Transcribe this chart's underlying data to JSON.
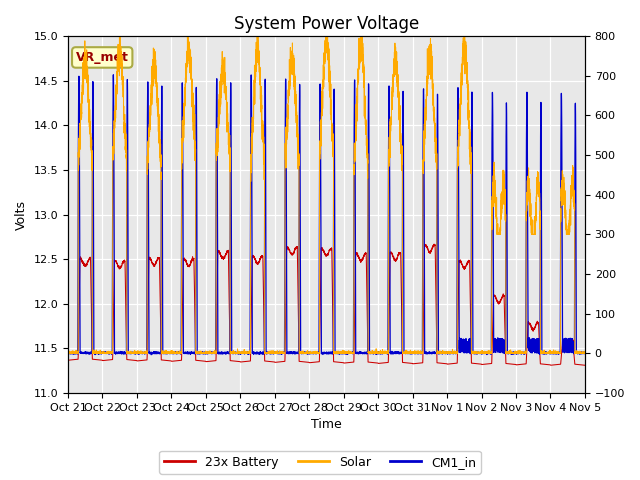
{
  "title": "System Power Voltage",
  "xlabel": "Time",
  "ylabel": "Volts",
  "xtick_labels": [
    "Oct 21",
    "Oct 22",
    "Oct 23",
    "Oct 24",
    "Oct 25",
    "Oct 26",
    "Oct 27",
    "Oct 28",
    "Oct 29",
    "Oct 30",
    "Oct 31",
    "Nov 1",
    "Nov 2",
    "Nov 3",
    "Nov 4",
    "Nov 5"
  ],
  "ylim_left": [
    11.0,
    15.0
  ],
  "ylim_right": [
    -100,
    800
  ],
  "yticks_left": [
    11.0,
    11.5,
    12.0,
    12.5,
    13.0,
    13.5,
    14.0,
    14.5,
    15.0
  ],
  "yticks_right": [
    -100,
    0,
    100,
    200,
    300,
    400,
    500,
    600,
    700,
    800
  ],
  "battery_color": "#cc0000",
  "solar_color": "#ffaa00",
  "cm1_color": "#0000cc",
  "legend_labels": [
    "23x Battery",
    "Solar",
    "CM1_in"
  ],
  "annotation_text": "VR_met",
  "annotation_fg": "#990000",
  "annotation_bg": "#ffffcc",
  "annotation_edge": "#aaaa44",
  "bg_color": "#e8e8e8",
  "grid_color": "#ffffff",
  "title_fontsize": 12,
  "label_fontsize": 9,
  "tick_fontsize": 8,
  "legend_fontsize": 9
}
